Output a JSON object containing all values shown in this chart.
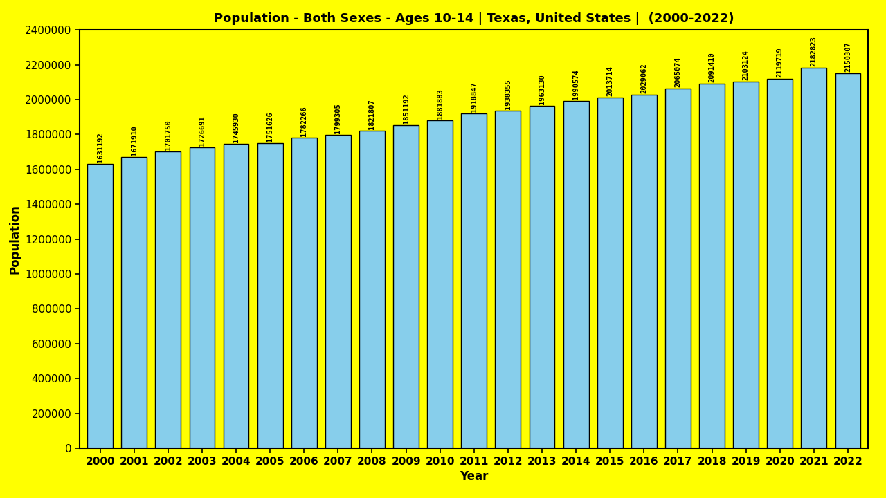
{
  "title": "Population - Both Sexes - Ages 10-14 | Texas, United States |  (2000-2022)",
  "xlabel": "Year",
  "ylabel": "Population",
  "background_color": "#FFFF00",
  "bar_color": "#87CEEB",
  "bar_edge_color": "#000000",
  "years": [
    2000,
    2001,
    2002,
    2003,
    2004,
    2005,
    2006,
    2007,
    2008,
    2009,
    2010,
    2011,
    2012,
    2013,
    2014,
    2015,
    2016,
    2017,
    2018,
    2019,
    2020,
    2021,
    2022
  ],
  "values": [
    1631192,
    1671910,
    1701750,
    1726691,
    1745930,
    1751626,
    1782266,
    1799305,
    1821807,
    1851192,
    1881883,
    1918847,
    1938355,
    1963130,
    1990574,
    2013714,
    2029062,
    2065074,
    2091410,
    2103124,
    2119719,
    2182823,
    2150307
  ],
  "ylim": [
    0,
    2400000
  ],
  "ytick_interval": 200000,
  "title_fontsize": 13,
  "axis_fontsize": 12,
  "tick_fontsize": 11,
  "label_fontsize": 7.5,
  "bar_width": 0.75
}
